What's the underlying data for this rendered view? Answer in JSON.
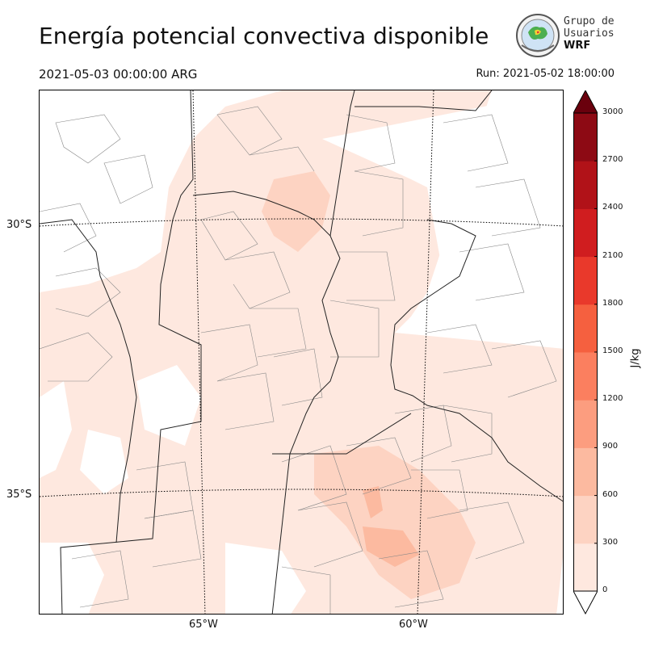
{
  "header": {
    "title": "Energía potencial convectiva disponible",
    "valid_time": "2021-05-03 00:00:00 ARG",
    "run_time": "Run: 2021-05-02 18:00:00"
  },
  "logo": {
    "line1": "Grupo de",
    "line2": "Usuarios",
    "line3": "WRF",
    "icon": "globe-emblem-icon"
  },
  "map": {
    "lat_labels": [
      "30°S",
      "35°S"
    ],
    "lon_labels": [
      "65°W",
      "60°W"
    ],
    "field": "CAPE"
  },
  "colorbar": {
    "unit": "J/kg",
    "ticks": [
      "0",
      "300",
      "600",
      "900",
      "1200",
      "1500",
      "1800",
      "2100",
      "2400",
      "2700",
      "3000"
    ],
    "colors": [
      "#fee8df",
      "#fdd3c2",
      "#fcbaa0",
      "#fc9d7f",
      "#fb7f5f",
      "#f5603f",
      "#e9392b",
      "#d01d1f",
      "#b11218",
      "#8d0a14",
      "#6a000d"
    ]
  }
}
